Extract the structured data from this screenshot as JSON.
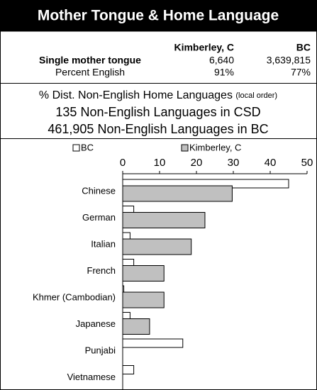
{
  "header": {
    "title": "Mother Tongue & Home Language"
  },
  "table": {
    "columns": [
      "Kimberley, C",
      "BC"
    ],
    "rows": [
      [
        "Single mother tongue",
        "6,640",
        "3,639,815"
      ],
      [
        "Percent English",
        "91%",
        "77%"
      ]
    ]
  },
  "lines": {
    "heading": "% Dist. Non-English Home Languages",
    "heading_note": "(local order)",
    "csd": "135 Non-English Languages in CSD",
    "bc": "461,905 Non-English Languages in BC"
  },
  "chart_data": {
    "type": "hbar",
    "categories": [
      "Chinese",
      "German",
      "Italian",
      "French",
      "Khmer (Cambodian)",
      "Japanese",
      "Punjabi",
      "Vietnamese"
    ],
    "series": [
      {
        "name": "BC",
        "color": "#ffffff",
        "values": [
          45,
          3,
          2,
          3,
          0.3,
          2,
          16.3,
          3
        ]
      },
      {
        "name": "Kimberley, C",
        "color": "#c0c0c0",
        "values": [
          29.7,
          22.3,
          18.6,
          11.2,
          11.2,
          7.3,
          0,
          0
        ]
      }
    ],
    "xlim": [
      0,
      50
    ],
    "xticks": [
      0,
      10,
      20,
      30,
      40,
      50
    ]
  }
}
